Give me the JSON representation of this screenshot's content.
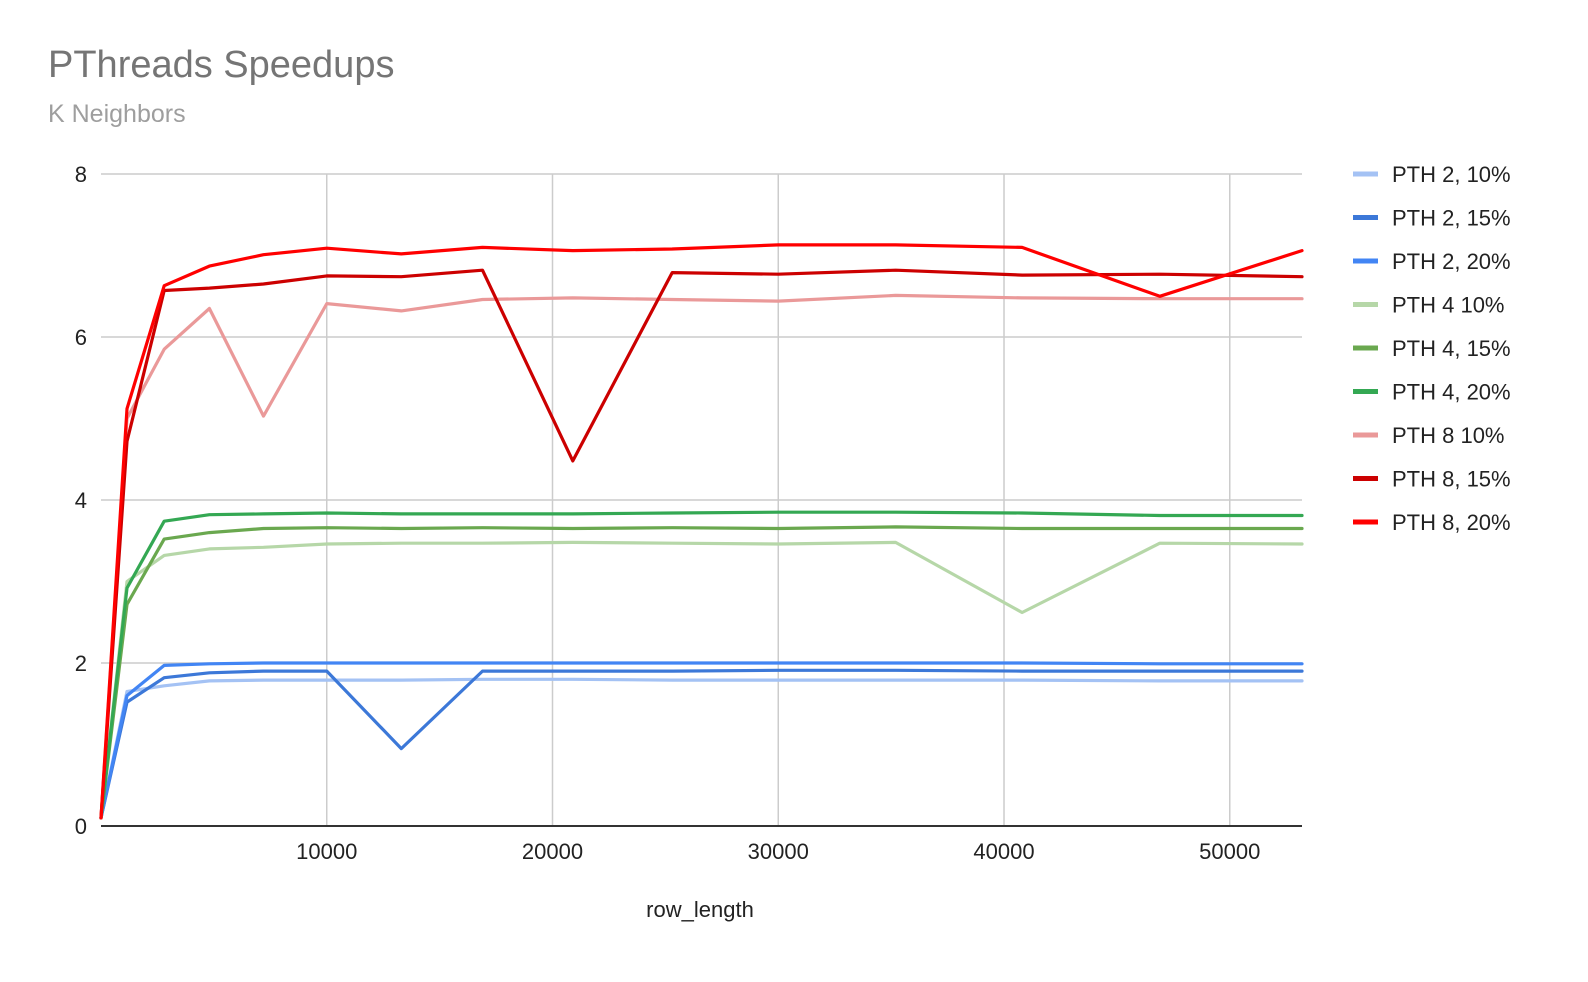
{
  "chart_data": {
    "type": "line",
    "title": "PThreads Speedups",
    "subtitle": "K Neighbors",
    "xlabel": "row_length",
    "ylabel": "",
    "xlim": [
      0,
      53200
    ],
    "ylim": [
      0,
      8
    ],
    "xticks": [
      10000,
      20000,
      30000,
      40000,
      50000
    ],
    "yticks": [
      0,
      2,
      4,
      6,
      8
    ],
    "grid": true,
    "legend_position": "right",
    "x": [
      0,
      1150,
      2800,
      4800,
      7200,
      10000,
      13300,
      16900,
      20900,
      25300,
      30000,
      35200,
      40800,
      46900,
      53200
    ],
    "series": [
      {
        "name": "PTH 2, 10%",
        "color": "#a4c2f4",
        "values": [
          0.1,
          1.65,
          1.72,
          1.78,
          1.79,
          1.79,
          1.79,
          1.8,
          1.8,
          1.79,
          1.79,
          1.79,
          1.79,
          1.78,
          1.78
        ]
      },
      {
        "name": "PTH 2, 15%",
        "color": "#3c78d8",
        "values": [
          0.1,
          1.52,
          1.82,
          1.88,
          1.9,
          1.9,
          0.95,
          1.9,
          1.9,
          1.9,
          1.91,
          1.91,
          1.9,
          1.9,
          1.9
        ]
      },
      {
        "name": "PTH 2, 20%",
        "color": "#4285f4",
        "values": [
          0.1,
          1.6,
          1.97,
          1.99,
          2.0,
          2.0,
          2.0,
          2.0,
          2.0,
          2.0,
          2.0,
          2.0,
          2.0,
          1.99,
          1.99
        ]
      },
      {
        "name": "PTH 4 10%",
        "color": "#b6d7a8",
        "values": [
          0.1,
          3.0,
          3.32,
          3.4,
          3.42,
          3.46,
          3.47,
          3.47,
          3.48,
          3.47,
          3.46,
          3.48,
          2.62,
          3.47,
          3.46
        ]
      },
      {
        "name": "PTH 4, 15%",
        "color": "#6aa84f",
        "values": [
          0.1,
          2.72,
          3.52,
          3.6,
          3.65,
          3.66,
          3.65,
          3.66,
          3.65,
          3.66,
          3.65,
          3.67,
          3.65,
          3.65,
          3.65
        ]
      },
      {
        "name": "PTH 4, 20%",
        "color": "#34a853",
        "values": [
          0.1,
          2.92,
          3.74,
          3.82,
          3.83,
          3.84,
          3.83,
          3.83,
          3.83,
          3.84,
          3.85,
          3.85,
          3.84,
          3.81,
          3.81
        ]
      },
      {
        "name": "PTH 8 10%",
        "color": "#ea9999",
        "values": [
          0.1,
          5.0,
          5.85,
          6.35,
          5.03,
          6.41,
          6.32,
          6.46,
          6.48,
          6.46,
          6.44,
          6.51,
          6.48,
          6.47,
          6.47
        ]
      },
      {
        "name": "PTH 8, 15%",
        "color": "#cc0000",
        "values": [
          0.1,
          4.72,
          6.57,
          6.6,
          6.65,
          6.75,
          6.74,
          6.82,
          4.48,
          6.79,
          6.77,
          6.82,
          6.76,
          6.77,
          6.74
        ]
      },
      {
        "name": "PTH 8, 20%",
        "color": "#ff0000",
        "values": [
          0.1,
          5.12,
          6.63,
          6.87,
          7.01,
          7.09,
          7.02,
          7.1,
          7.06,
          7.08,
          7.13,
          7.13,
          7.1,
          6.5,
          7.06
        ]
      }
    ]
  }
}
